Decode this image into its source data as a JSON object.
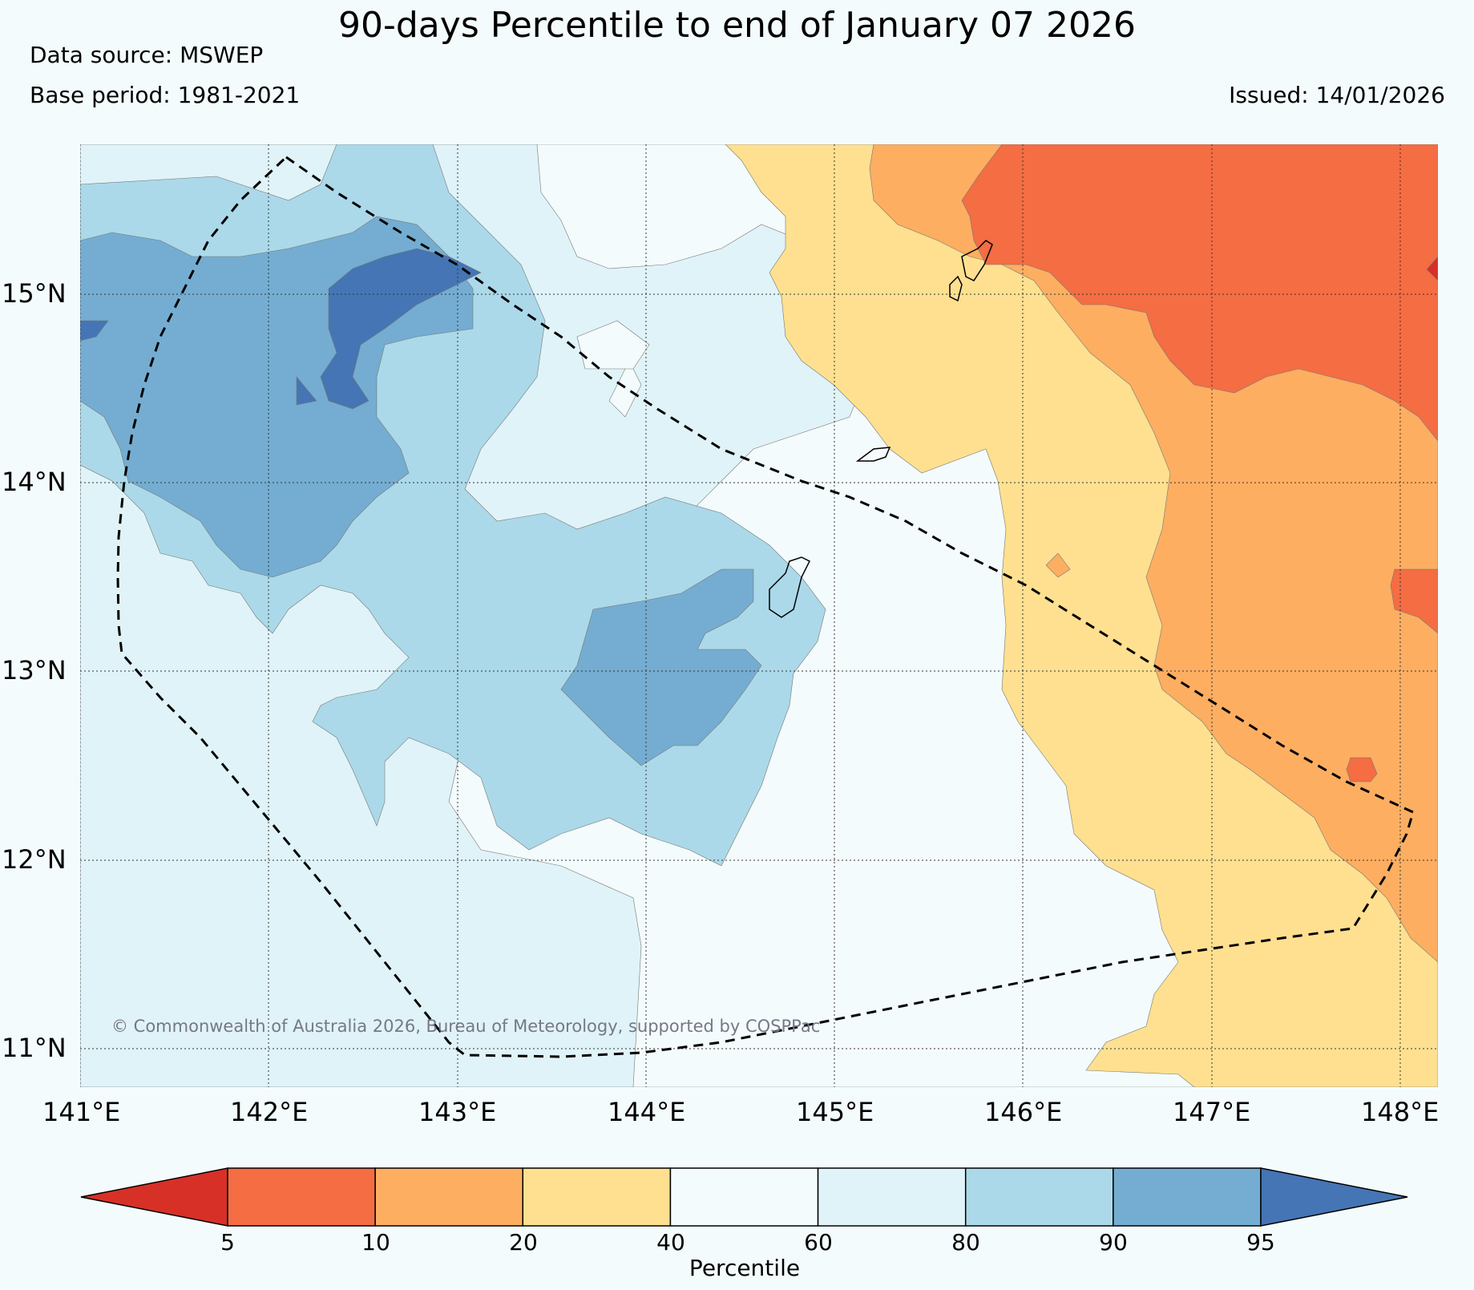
{
  "title": "90-days Percentile to end of January 07 2026",
  "data_source": "Data source: MSWEP",
  "base_period": "Base period: 1981-2021",
  "issued": "Issued: 14/01/2026",
  "copyright": "© Commonwealth of Australia 2026, Bureau of Meteorology, supported by COSPPac",
  "lat_labels": [
    "15°N",
    "14°N",
    "13°N",
    "12°N",
    "11°N"
  ],
  "lon_labels": [
    "141°E",
    "142°E",
    "143°E",
    "144°E",
    "145°E",
    "146°E",
    "147°E",
    "148°E"
  ],
  "colorbar": {
    "title": "Percentile",
    "ticks": [
      "5",
      "10",
      "20",
      "40",
      "60",
      "80",
      "90",
      "95"
    ],
    "colors": [
      "#d73027",
      "#f46d43",
      "#fdae61",
      "#fee090",
      "#f4fbfc",
      "#e0f3f8",
      "#abd9e9",
      "#74add1",
      "#4575b4"
    ]
  }
}
